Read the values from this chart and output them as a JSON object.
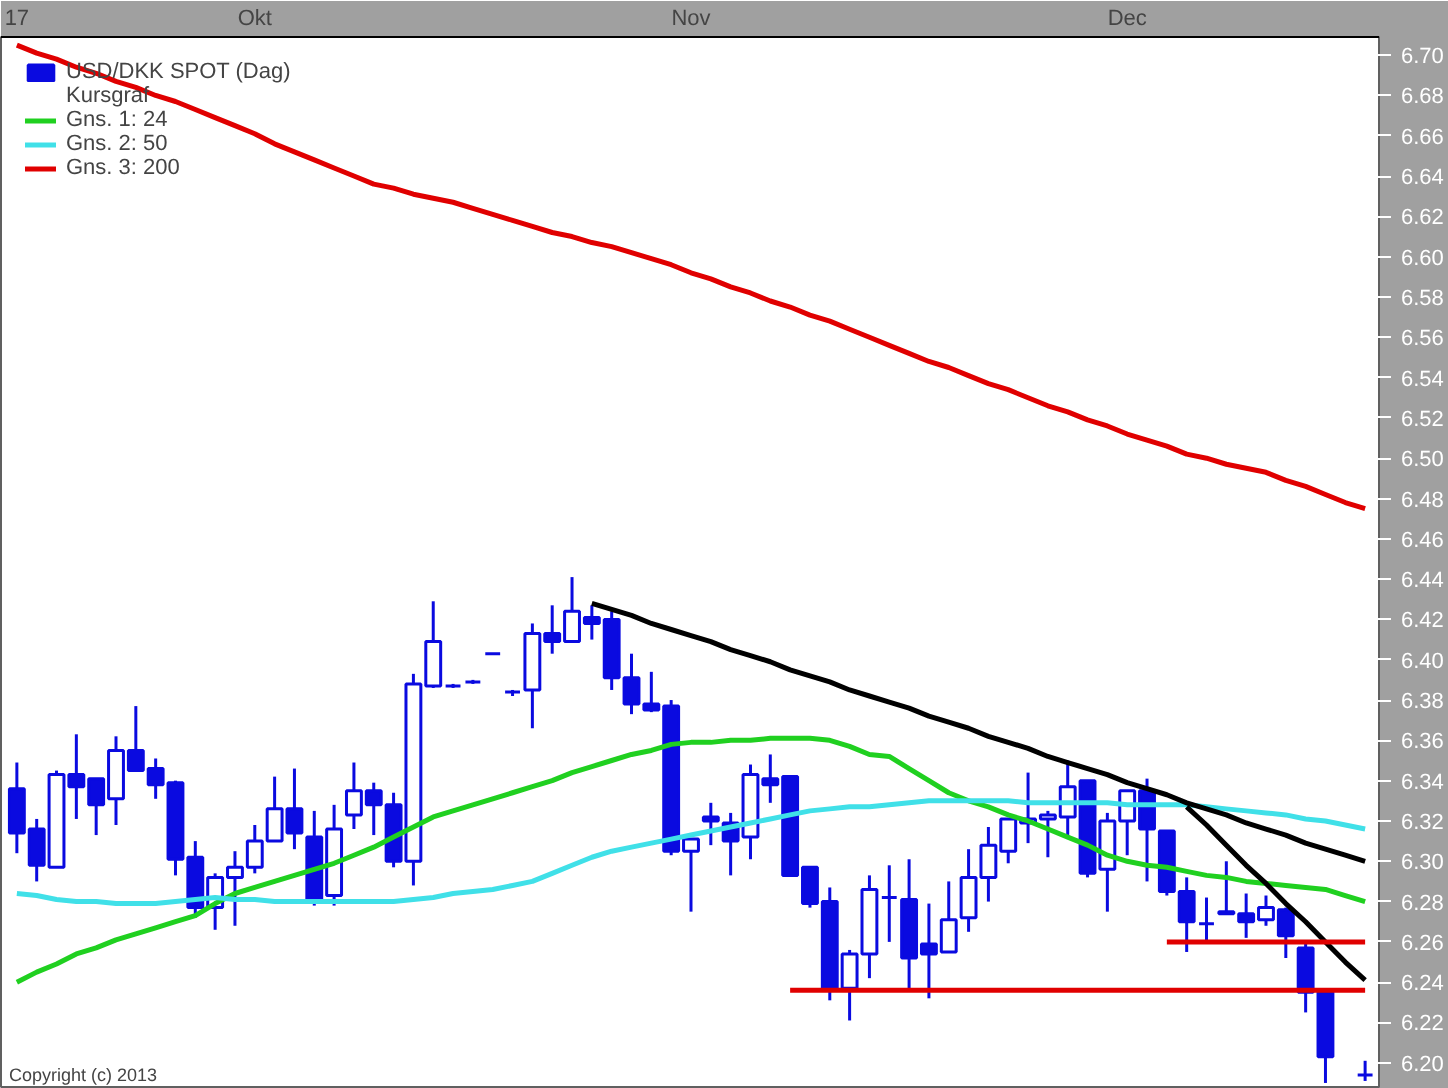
{
  "chart_data": {
    "type": "candlestick",
    "legend_title": "Kursgraf",
    "legend": "top left",
    "grid": false,
    "marker": "none",
    "annotations": [
      "Copyright (c) 2013"
    ],
    "categories": [
      "17",
      null,
      null,
      null,
      null,
      null,
      null,
      null,
      null,
      null,
      null,
      null,
      "Okt",
      null,
      null,
      null,
      null,
      null,
      null,
      null,
      null,
      null,
      null,
      null,
      null,
      null,
      null,
      null,
      null,
      null,
      null,
      null,
      null,
      null,
      "Nov",
      null,
      null,
      null,
      null,
      null,
      null,
      null,
      null,
      null,
      null,
      null,
      null,
      null,
      null,
      null,
      null,
      null,
      null,
      null,
      null,
      null,
      "Dec",
      null,
      null,
      null,
      null,
      null,
      null,
      null,
      null,
      null,
      null,
      null,
      null
    ],
    "ylim": [
      6.187,
      6.709
    ],
    "yticks": [
      {
        "value": 6.2,
        "label": "6.20"
      },
      6.22,
      6.24,
      6.26,
      6.28,
      {
        "value": 6.3,
        "label": "6.30"
      },
      6.32,
      6.34,
      6.36,
      6.38,
      {
        "value": 6.4,
        "label": "6.40"
      },
      6.42,
      6.44,
      6.46,
      6.48,
      {
        "value": 6.5,
        "label": "6.50"
      },
      6.52,
      6.54,
      6.56,
      6.58,
      {
        "value": 6.6,
        "label": "6.60"
      },
      6.62,
      6.64,
      6.66,
      6.68,
      {
        "value": 6.7,
        "label": "6.70"
      }
    ],
    "series": [
      {
        "type": "candlestick",
        "name": "USD/DKK SPOT (Dag)",
        "color": "#0a0ae0",
        "ohlc": [
          [
            6.336,
            6.349,
            6.304,
            6.314
          ],
          [
            6.316,
            6.321,
            6.29,
            6.298
          ],
          [
            6.297,
            6.345,
            6.297,
            6.343
          ],
          [
            6.343,
            6.363,
            6.321,
            6.337
          ],
          [
            6.341,
            6.341,
            6.313,
            6.328
          ],
          [
            6.331,
            6.362,
            6.318,
            6.355
          ],
          [
            6.355,
            6.377,
            6.345,
            6.345
          ],
          [
            6.346,
            6.351,
            6.331,
            6.338
          ],
          [
            6.339,
            6.34,
            6.293,
            6.301
          ],
          [
            6.302,
            6.31,
            6.272,
            6.277
          ],
          [
            6.277,
            6.294,
            6.266,
            6.292
          ],
          [
            6.292,
            6.305,
            6.268,
            6.297
          ],
          [
            6.297,
            6.318,
            6.294,
            6.31
          ],
          [
            6.31,
            6.342,
            6.31,
            6.326
          ],
          [
            6.326,
            6.346,
            6.306,
            6.314
          ],
          [
            6.312,
            6.325,
            6.278,
            6.281
          ],
          [
            6.283,
            6.328,
            6.278,
            6.316
          ],
          [
            6.323,
            6.349,
            6.316,
            6.335
          ],
          [
            6.335,
            6.339,
            6.313,
            6.328
          ],
          [
            6.328,
            6.334,
            6.297,
            6.3
          ],
          [
            6.3,
            6.393,
            6.288,
            6.388
          ],
          [
            6.387,
            6.429,
            6.386,
            6.409
          ],
          [
            6.387,
            6.388,
            6.386,
            6.387
          ],
          [
            6.389,
            6.39,
            6.388,
            6.389
          ],
          [
            6.403,
            6.403,
            6.403,
            6.403
          ],
          [
            6.384,
            6.385,
            6.382,
            6.384
          ],
          [
            6.385,
            6.418,
            6.366,
            6.413
          ],
          [
            6.413,
            6.427,
            6.403,
            6.409
          ],
          [
            6.409,
            6.441,
            6.409,
            6.424
          ],
          [
            6.421,
            6.427,
            6.41,
            6.418
          ],
          [
            6.42,
            6.424,
            6.385,
            6.391
          ],
          [
            6.391,
            6.403,
            6.373,
            6.378
          ],
          [
            6.378,
            6.394,
            6.374,
            6.375
          ],
          [
            6.377,
            6.38,
            6.303,
            6.305
          ],
          [
            6.305,
            6.311,
            6.275,
            6.311
          ],
          [
            6.322,
            6.329,
            6.308,
            6.32
          ],
          [
            6.319,
            6.324,
            6.293,
            6.31
          ],
          [
            6.312,
            6.348,
            6.301,
            6.343
          ],
          [
            6.341,
            6.353,
            6.329,
            6.338
          ],
          [
            6.342,
            6.342,
            6.293,
            6.293
          ],
          [
            6.297,
            6.297,
            6.277,
            6.279
          ],
          [
            6.28,
            6.287,
            6.231,
            6.237
          ],
          [
            6.237,
            6.256,
            6.221,
            6.254
          ],
          [
            6.254,
            6.293,
            6.242,
            6.286
          ],
          [
            6.282,
            6.298,
            6.26,
            6.282
          ],
          [
            6.281,
            6.301,
            6.237,
            6.252
          ],
          [
            6.259,
            6.279,
            6.232,
            6.254
          ],
          [
            6.255,
            6.29,
            6.255,
            6.271
          ],
          [
            6.272,
            6.306,
            6.265,
            6.292
          ],
          [
            6.292,
            6.317,
            6.28,
            6.308
          ],
          [
            6.305,
            6.321,
            6.299,
            6.321
          ],
          [
            6.319,
            6.344,
            6.309,
            6.321
          ],
          [
            6.321,
            6.325,
            6.302,
            6.323
          ],
          [
            6.322,
            6.35,
            6.312,
            6.337
          ],
          [
            6.34,
            6.34,
            6.292,
            6.294
          ],
          [
            6.296,
            6.324,
            6.275,
            6.32
          ],
          [
            6.32,
            6.335,
            6.303,
            6.335
          ],
          [
            6.335,
            6.341,
            6.29,
            6.316
          ],
          [
            6.315,
            6.315,
            6.283,
            6.285
          ],
          [
            6.285,
            6.292,
            6.255,
            6.27
          ],
          [
            6.269,
            6.282,
            6.26,
            6.269
          ],
          [
            6.275,
            6.3,
            6.274,
            6.274
          ],
          [
            6.274,
            6.284,
            6.262,
            6.27
          ],
          [
            6.271,
            6.283,
            6.268,
            6.277
          ],
          [
            6.276,
            6.277,
            6.252,
            6.263
          ],
          [
            6.257,
            6.259,
            6.225,
            6.235
          ],
          [
            6.235,
            6.236,
            6.19,
            6.203
          ],
          null,
          [
            6.194,
            6.201,
            6.191,
            6.194
          ]
        ]
      },
      {
        "type": "line",
        "name": "Gns. 1: 24",
        "color": "#20d020",
        "values": [
          6.24,
          6.245,
          6.249,
          6.254,
          6.257,
          6.261,
          6.264,
          6.267,
          6.27,
          6.273,
          6.279,
          6.284,
          6.287,
          6.29,
          6.293,
          6.296,
          6.299,
          6.303,
          6.307,
          6.312,
          6.317,
          6.322,
          6.325,
          6.328,
          6.331,
          6.334,
          6.337,
          6.34,
          6.344,
          6.347,
          6.35,
          6.353,
          6.355,
          6.358,
          6.359,
          6.359,
          6.36,
          6.36,
          6.361,
          6.361,
          6.361,
          6.36,
          6.357,
          6.353,
          6.352,
          6.346,
          6.34,
          6.334,
          6.33,
          6.327,
          6.323,
          6.32,
          6.316,
          6.312,
          6.308,
          6.303,
          6.3,
          6.298,
          6.297,
          6.295,
          6.293,
          6.292,
          6.29,
          6.289,
          6.288,
          6.287,
          6.286,
          6.283,
          6.28
        ]
      },
      {
        "type": "line",
        "name": "Gns. 2: 50",
        "color": "#40e0e8",
        "values": [
          6.284,
          6.283,
          6.281,
          6.28,
          6.28,
          6.279,
          6.279,
          6.279,
          6.28,
          6.281,
          6.282,
          6.281,
          6.281,
          6.28,
          6.28,
          6.28,
          6.28,
          6.28,
          6.28,
          6.28,
          6.281,
          6.282,
          6.284,
          6.285,
          6.286,
          6.288,
          6.29,
          6.294,
          6.298,
          6.302,
          6.305,
          6.307,
          6.309,
          6.311,
          6.313,
          6.315,
          6.317,
          6.319,
          6.321,
          6.323,
          6.325,
          6.326,
          6.327,
          6.327,
          6.328,
          6.329,
          6.33,
          6.33,
          6.33,
          6.33,
          6.33,
          6.329,
          6.329,
          6.329,
          6.329,
          6.329,
          6.328,
          6.328,
          6.328,
          6.328,
          6.327,
          6.326,
          6.325,
          6.324,
          6.323,
          6.321,
          6.32,
          6.318,
          6.316
        ]
      },
      {
        "type": "line",
        "name": "Gns. 3: 200",
        "color": "#e00000",
        "values": [
          6.705,
          6.701,
          6.698,
          6.694,
          6.691,
          6.687,
          6.684,
          6.68,
          6.677,
          6.673,
          6.669,
          6.665,
          6.661,
          6.656,
          6.652,
          6.648,
          6.644,
          6.64,
          6.636,
          6.634,
          6.631,
          6.629,
          6.627,
          6.624,
          6.621,
          6.618,
          6.615,
          6.612,
          6.61,
          6.607,
          6.605,
          6.602,
          6.599,
          6.596,
          6.592,
          6.589,
          6.585,
          6.582,
          6.578,
          6.575,
          6.571,
          6.568,
          6.564,
          6.56,
          6.556,
          6.552,
          6.548,
          6.545,
          6.541,
          6.537,
          6.534,
          6.53,
          6.526,
          6.523,
          6.519,
          6.516,
          6.512,
          6.509,
          6.506,
          6.502,
          6.5,
          6.497,
          6.495,
          6.493,
          6.489,
          6.486,
          6.482,
          6.478,
          6.475
        ]
      },
      {
        "type": "line",
        "color": "#000000",
        "values": [
          null,
          null,
          null,
          null,
          null,
          null,
          null,
          null,
          null,
          null,
          null,
          null,
          null,
          null,
          null,
          null,
          null,
          null,
          null,
          null,
          null,
          null,
          null,
          null,
          null,
          null,
          null,
          null,
          null,
          6.428,
          6.425,
          6.422,
          6.418,
          6.415,
          6.412,
          6.409,
          6.405,
          6.402,
          6.399,
          6.395,
          6.392,
          6.389,
          6.385,
          6.382,
          6.379,
          6.376,
          6.372,
          6.369,
          6.366,
          6.362,
          6.359,
          6.356,
          6.352,
          6.349,
          6.346,
          6.343,
          6.339,
          6.336,
          6.333,
          6.329,
          6.326,
          6.323,
          6.319,
          6.316,
          6.313,
          6.309,
          6.306,
          6.303,
          6.3
        ]
      },
      {
        "type": "line",
        "color": "#000000",
        "values": [
          null,
          null,
          null,
          null,
          null,
          null,
          null,
          null,
          null,
          null,
          null,
          null,
          null,
          null,
          null,
          null,
          null,
          null,
          null,
          null,
          null,
          null,
          null,
          null,
          null,
          null,
          null,
          null,
          null,
          null,
          null,
          null,
          null,
          null,
          null,
          null,
          null,
          null,
          null,
          null,
          null,
          null,
          null,
          null,
          null,
          null,
          null,
          null,
          null,
          null,
          null,
          null,
          null,
          null,
          null,
          null,
          null,
          null,
          null,
          6.327,
          6.318,
          6.308,
          6.298,
          6.289,
          6.279,
          6.27,
          6.26,
          6.25,
          6.241
        ]
      },
      {
        "type": "line",
        "color": "#e00000",
        "values": [
          null,
          null,
          null,
          null,
          null,
          null,
          null,
          null,
          null,
          null,
          null,
          null,
          null,
          null,
          null,
          null,
          null,
          null,
          null,
          null,
          null,
          null,
          null,
          null,
          null,
          null,
          null,
          null,
          null,
          null,
          null,
          null,
          null,
          null,
          null,
          null,
          null,
          null,
          null,
          6.236,
          6.236,
          6.236,
          6.236,
          6.236,
          6.236,
          6.236,
          6.236,
          6.236,
          6.236,
          6.236,
          6.236,
          6.236,
          6.236,
          6.236,
          6.236,
          6.236,
          6.236,
          6.236,
          6.236,
          6.236,
          6.236,
          6.236,
          6.236,
          6.236,
          6.236,
          6.236,
          6.236,
          6.236,
          6.236
        ]
      },
      {
        "type": "line",
        "color": "#e00000",
        "values": [
          null,
          null,
          null,
          null,
          null,
          null,
          null,
          null,
          null,
          null,
          null,
          null,
          null,
          null,
          null,
          null,
          null,
          null,
          null,
          null,
          null,
          null,
          null,
          null,
          null,
          null,
          null,
          null,
          null,
          null,
          null,
          null,
          null,
          null,
          null,
          null,
          null,
          null,
          null,
          null,
          null,
          null,
          null,
          null,
          null,
          null,
          null,
          null,
          null,
          null,
          null,
          null,
          null,
          null,
          null,
          null,
          null,
          null,
          6.26,
          6.26,
          6.26,
          6.26,
          6.26,
          6.26,
          6.26,
          6.26,
          6.26,
          6.26,
          6.26
        ]
      }
    ]
  }
}
